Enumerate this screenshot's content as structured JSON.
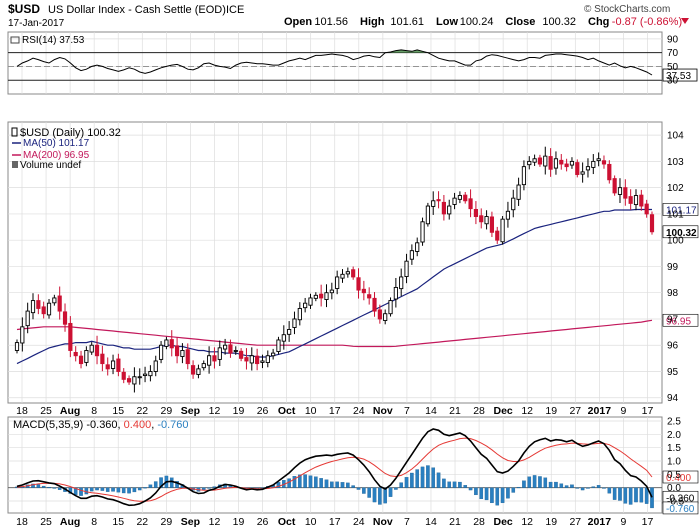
{
  "header": {
    "symbol": "$USD",
    "name": "US Dollar Index - Cash Settle (EOD)",
    "exchange": "ICE",
    "date": "17-Jan-2017",
    "brand": "© StockCharts.com",
    "ohlc": [
      {
        "label": "Open",
        "value": "101.56"
      },
      {
        "label": "High",
        "value": "101.61"
      },
      {
        "label": "Low",
        "value": "100.24"
      },
      {
        "label": "Close",
        "value": "100.32"
      },
      {
        "label": "Chg",
        "value": "-0.87 (-0.86%)"
      }
    ],
    "chg_arrow": "down-arrow-icon"
  },
  "colors": {
    "up_candle": "#000000",
    "down_candle": "#cc1133",
    "ma50": "#1a237e",
    "ma200": "#c2185b",
    "rsi_fill": "#4f8f4f",
    "macd_line": "#000000",
    "signal_line": "#e53935",
    "histogram": "#2a7fc0",
    "grid": "#dddddd"
  },
  "legend": {
    "rsi": "RSI(14) 37.53",
    "price": "$USD (Daily) 100.32",
    "ma50": "MA(50) 101.17",
    "ma200": "MA(200) 96.95",
    "volume": "Volume undef",
    "macd_prefix": "MACD(5,35,9) -0.360, ",
    "macd_signal": "0.400",
    "macd_sep": ", ",
    "macd_hist": "-0.760"
  },
  "x_axis": {
    "labels": [
      {
        "text": "18",
        "bold": false
      },
      {
        "text": "25",
        "bold": false
      },
      {
        "text": "Aug",
        "bold": true
      },
      {
        "text": "8",
        "bold": false
      },
      {
        "text": "15",
        "bold": false
      },
      {
        "text": "22",
        "bold": false
      },
      {
        "text": "29",
        "bold": false
      },
      {
        "text": "Sep",
        "bold": true
      },
      {
        "text": "12",
        "bold": false
      },
      {
        "text": "19",
        "bold": false
      },
      {
        "text": "26",
        "bold": false
      },
      {
        "text": "Oct",
        "bold": true
      },
      {
        "text": "10",
        "bold": false
      },
      {
        "text": "17",
        "bold": false
      },
      {
        "text": "24",
        "bold": false
      },
      {
        "text": "Nov",
        "bold": true
      },
      {
        "text": "7",
        "bold": false
      },
      {
        "text": "14",
        "bold": false
      },
      {
        "text": "21",
        "bold": false
      },
      {
        "text": "28",
        "bold": false
      },
      {
        "text": "Dec",
        "bold": true
      },
      {
        "text": "12",
        "bold": false
      },
      {
        "text": "19",
        "bold": false
      },
      {
        "text": "27",
        "bold": false
      },
      {
        "text": "2017",
        "bold": true
      },
      {
        "text": "9",
        "bold": false
      },
      {
        "text": "17",
        "bold": false
      }
    ]
  },
  "chart_data": [
    {
      "type": "line",
      "panel": "rsi",
      "y_ticks": [
        "90",
        "70",
        "50",
        "30"
      ],
      "ylim": [
        10,
        100
      ],
      "overbought": 70,
      "oversold": 30,
      "last_value": "37.53",
      "last": 37.53,
      "values": [
        50,
        55,
        58,
        62,
        60,
        57,
        55,
        60,
        63,
        61,
        55,
        48,
        44,
        46,
        50,
        52,
        50,
        47,
        45,
        43,
        45,
        48,
        46,
        42,
        40,
        42,
        45,
        48,
        50,
        52,
        53,
        50,
        46,
        45,
        48,
        54,
        55,
        52,
        50,
        49,
        47,
        52,
        55,
        56,
        55,
        54,
        54,
        53,
        52,
        52,
        55,
        58,
        60,
        62,
        60,
        63,
        66,
        66,
        67,
        68,
        67,
        66,
        64,
        60,
        62,
        65,
        66,
        64,
        63,
        70,
        71,
        73,
        74,
        73,
        72,
        74,
        72,
        70,
        66,
        62,
        60,
        58,
        58,
        55,
        52,
        52,
        58,
        60,
        65,
        67,
        66,
        64,
        62,
        60,
        58,
        60,
        63,
        63,
        62,
        66,
        67,
        68,
        68,
        67,
        66,
        65,
        63,
        60,
        62,
        58,
        55,
        52,
        55,
        51,
        48,
        50,
        48,
        45,
        42,
        37.53
      ]
    },
    {
      "type": "candlestick",
      "panel": "price",
      "y_ticks": [
        "104",
        "103",
        "102",
        "101",
        "100",
        "99",
        "98",
        "97",
        "96",
        "95",
        "94"
      ],
      "ylim": [
        93.8,
        104.5
      ],
      "last_labels": {
        "close": "100.32",
        "ma50": "101.17",
        "ma200": "96.95"
      },
      "close": [
        96.1,
        96.7,
        97.3,
        97.7,
        97.4,
        97.2,
        97.6,
        97.8,
        97.3,
        96.8,
        95.8,
        95.6,
        95.3,
        95.8,
        96.0,
        95.6,
        95.3,
        95.1,
        95.4,
        95.0,
        94.7,
        94.6,
        94.8,
        94.8,
        94.9,
        95.0,
        95.4,
        96.0,
        96.2,
        95.9,
        95.6,
        95.8,
        95.3,
        94.9,
        95.1,
        95.3,
        95.6,
        95.4,
        95.9,
        96.0,
        95.7,
        95.8,
        95.5,
        95.4,
        95.6,
        95.3,
        95.4,
        95.6,
        95.7,
        96.2,
        96.4,
        96.6,
        97.0,
        97.4,
        97.6,
        97.8,
        97.9,
        97.8,
        98.0,
        98.1,
        98.6,
        98.7,
        98.8,
        98.6,
        98.1,
        98.0,
        97.8,
        97.3,
        97.0,
        97.2,
        97.7,
        98.2,
        98.6,
        99.2,
        99.6,
        99.9,
        100.7,
        101.3,
        101.5,
        101.5,
        101.0,
        101.3,
        101.6,
        101.7,
        101.5,
        101.2,
        100.9,
        100.7,
        100.9,
        100.3,
        100.0,
        100.8,
        101.1,
        101.6,
        102.1,
        102.8,
        103.0,
        103.1,
        102.9,
        103.2,
        102.7,
        103.1,
        102.9,
        102.8,
        103.0,
        102.5,
        102.6,
        102.8,
        103.0,
        103.1,
        102.9,
        102.3,
        101.8,
        102.0,
        101.6,
        101.4,
        101.7,
        101.3,
        101.0,
        100.32
      ],
      "ma50": [
        95.3,
        95.4,
        95.5,
        95.6,
        95.7,
        95.8,
        95.9,
        95.95,
        96.0,
        96.05,
        96.05,
        96.1,
        96.1,
        96.1,
        96.15,
        96.1,
        96.05,
        96.0,
        96.0,
        95.95,
        95.9,
        95.9,
        95.85,
        95.85,
        95.85,
        95.85,
        95.9,
        95.95,
        96.0,
        96.0,
        95.95,
        95.95,
        95.9,
        95.85,
        95.8,
        95.8,
        95.75,
        95.75,
        95.75,
        95.7,
        95.7,
        95.7,
        95.65,
        95.6,
        95.6,
        95.55,
        95.55,
        95.55,
        95.6,
        95.65,
        95.7,
        95.75,
        95.85,
        95.95,
        96.05,
        96.15,
        96.25,
        96.35,
        96.45,
        96.55,
        96.65,
        96.75,
        96.85,
        96.95,
        97.05,
        97.15,
        97.25,
        97.35,
        97.45,
        97.55,
        97.65,
        97.75,
        97.85,
        97.95,
        98.05,
        98.15,
        98.3,
        98.45,
        98.6,
        98.75,
        98.9,
        99.0,
        99.1,
        99.2,
        99.3,
        99.4,
        99.5,
        99.6,
        99.7,
        99.75,
        99.8,
        99.85,
        99.95,
        100.05,
        100.15,
        100.25,
        100.35,
        100.45,
        100.5,
        100.55,
        100.6,
        100.65,
        100.7,
        100.75,
        100.8,
        100.85,
        100.9,
        100.95,
        101.0,
        101.05,
        101.1,
        101.1,
        101.15,
        101.15,
        101.15,
        101.15,
        101.17,
        101.17,
        101.17,
        101.17
      ],
      "ma200": [
        96.6,
        96.62,
        96.64,
        96.66,
        96.68,
        96.7,
        96.7,
        96.7,
        96.7,
        96.7,
        96.7,
        96.68,
        96.66,
        96.64,
        96.62,
        96.6,
        96.58,
        96.56,
        96.54,
        96.52,
        96.5,
        96.48,
        96.46,
        96.44,
        96.42,
        96.4,
        96.38,
        96.36,
        96.34,
        96.32,
        96.3,
        96.28,
        96.26,
        96.24,
        96.22,
        96.2,
        96.18,
        96.16,
        96.14,
        96.12,
        96.1,
        96.08,
        96.06,
        96.04,
        96.02,
        96.0,
        96.0,
        96.0,
        96.0,
        96.0,
        96.0,
        96.0,
        96.0,
        96.0,
        96.0,
        96.0,
        96.0,
        96.0,
        96.0,
        96.0,
        96.0,
        96.0,
        95.98,
        95.96,
        95.95,
        95.95,
        95.95,
        95.95,
        95.95,
        95.95,
        95.95,
        95.96,
        95.98,
        96.0,
        96.02,
        96.04,
        96.06,
        96.08,
        96.1,
        96.12,
        96.14,
        96.16,
        96.18,
        96.2,
        96.22,
        96.24,
        96.26,
        96.28,
        96.3,
        96.32,
        96.34,
        96.36,
        96.38,
        96.4,
        96.42,
        96.44,
        96.46,
        96.48,
        96.5,
        96.52,
        96.54,
        96.56,
        96.58,
        96.6,
        96.62,
        96.64,
        96.66,
        96.68,
        96.7,
        96.72,
        96.74,
        96.76,
        96.78,
        96.8,
        96.82,
        96.84,
        96.86,
        96.88,
        96.92,
        96.95
      ]
    },
    {
      "type": "line",
      "panel": "macd",
      "y_ticks": [
        "2.5",
        "2.0",
        "1.5",
        "1.0",
        "0.5",
        "0.0",
        "-0.5"
      ],
      "ylim": [
        -0.95,
        2.65
      ],
      "last_labels": {
        "signal": "0.400",
        "macd": "-0.360",
        "hist": "-0.760"
      },
      "macd": [
        0.05,
        0.1,
        0.18,
        0.25,
        0.26,
        0.22,
        0.18,
        0.15,
        0.06,
        -0.05,
        -0.18,
        -0.3,
        -0.4,
        -0.4,
        -0.32,
        -0.3,
        -0.35,
        -0.42,
        -0.45,
        -0.52,
        -0.6,
        -0.66,
        -0.65,
        -0.6,
        -0.5,
        -0.38,
        -0.2,
        0.05,
        0.22,
        0.24,
        0.18,
        0.1,
        -0.02,
        -0.15,
        -0.22,
        -0.2,
        -0.1,
        -0.05,
        0.05,
        0.12,
        0.1,
        0.05,
        -0.02,
        -0.08,
        -0.05,
        -0.08,
        -0.06,
        0.02,
        0.1,
        0.25,
        0.4,
        0.55,
        0.75,
        0.92,
        1.05,
        1.12,
        1.18,
        1.2,
        1.22,
        1.2,
        1.25,
        1.28,
        1.3,
        1.22,
        1.05,
        0.85,
        0.6,
        0.3,
        0.05,
        -0.05,
        0.1,
        0.35,
        0.65,
        0.95,
        1.25,
        1.55,
        1.85,
        2.1,
        2.2,
        2.15,
        2.0,
        1.95,
        2.0,
        2.05,
        1.95,
        1.75,
        1.5,
        1.25,
        1.1,
        0.85,
        0.6,
        0.55,
        0.62,
        0.8,
        1.0,
        1.3,
        1.55,
        1.72,
        1.8,
        1.85,
        1.75,
        1.8,
        1.78,
        1.72,
        1.78,
        1.65,
        1.55,
        1.6,
        1.68,
        1.75,
        1.65,
        1.4,
        1.05,
        0.9,
        0.65,
        0.45,
        0.4,
        0.25,
        0.05,
        -0.36
      ],
      "signal": [
        0.02,
        0.04,
        0.07,
        0.11,
        0.14,
        0.16,
        0.16,
        0.16,
        0.14,
        0.1,
        0.04,
        -0.03,
        -0.1,
        -0.16,
        -0.19,
        -0.21,
        -0.24,
        -0.27,
        -0.31,
        -0.35,
        -0.4,
        -0.45,
        -0.49,
        -0.51,
        -0.51,
        -0.49,
        -0.43,
        -0.33,
        -0.22,
        -0.13,
        -0.06,
        -0.02,
        -0.02,
        -0.05,
        -0.08,
        -0.1,
        -0.1,
        -0.09,
        -0.06,
        -0.02,
        0.0,
        0.01,
        0.0,
        -0.02,
        -0.03,
        -0.04,
        -0.04,
        -0.03,
        0.0,
        0.05,
        0.12,
        0.21,
        0.32,
        0.44,
        0.56,
        0.67,
        0.77,
        0.85,
        0.92,
        0.98,
        1.03,
        1.08,
        1.12,
        1.14,
        1.12,
        1.07,
        0.97,
        0.84,
        0.68,
        0.53,
        0.44,
        0.42,
        0.46,
        0.56,
        0.7,
        0.87,
        1.07,
        1.27,
        1.45,
        1.59,
        1.67,
        1.73,
        1.78,
        1.84,
        1.86,
        1.84,
        1.77,
        1.67,
        1.56,
        1.42,
        1.26,
        1.12,
        1.02,
        0.98,
        0.98,
        1.04,
        1.14,
        1.26,
        1.38,
        1.48,
        1.54,
        1.59,
        1.63,
        1.64,
        1.67,
        1.66,
        1.64,
        1.63,
        1.64,
        1.66,
        1.66,
        1.61,
        1.5,
        1.38,
        1.24,
        1.08,
        0.94,
        0.8,
        0.65,
        0.4
      ]
    }
  ]
}
